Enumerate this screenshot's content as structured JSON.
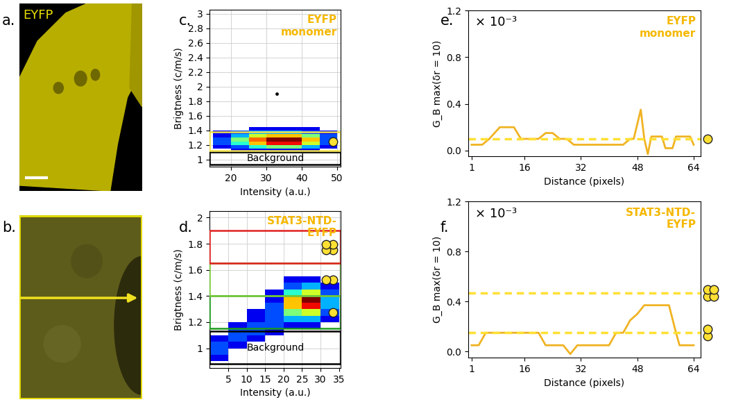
{
  "chart_data": [
    {
      "type": "image",
      "title": "a.",
      "subtitle": "EYFP"
    },
    {
      "type": "image",
      "title": "b."
    },
    {
      "type": "density",
      "title": "c.",
      "subtitle": "EYFP\nmonomer",
      "x_label": "Intensity (a.u.)",
      "y_label": "Brigtness (c/m/s)",
      "xlim": [
        14,
        51
      ],
      "xticks": [
        20,
        30,
        40,
        50
      ],
      "ylim": [
        0.9,
        3.05
      ],
      "yticks": [
        1,
        1.2,
        1.4,
        1.6,
        1.8,
        2,
        2.2,
        2.4,
        2.6,
        2.8,
        3
      ],
      "grid": true,
      "x_edges": [
        15,
        20,
        25,
        30,
        35,
        40,
        45,
        50
      ],
      "y_edges": [
        1.1,
        1.15,
        1.2,
        1.25,
        1.3,
        1.35,
        1.4,
        1.45
      ],
      "cells": [
        [
          0,
          1,
          1,
          1,
          1,
          1,
          0
        ],
        [
          1,
          2,
          4,
          5,
          5,
          3,
          1
        ],
        [
          2,
          4,
          7,
          9,
          9,
          6,
          2
        ],
        [
          2,
          5,
          8,
          10,
          10,
          7,
          2
        ],
        [
          1,
          3,
          6,
          7,
          7,
          5,
          2
        ],
        [
          1,
          2,
          3,
          3,
          3,
          2,
          1
        ],
        [
          0,
          0,
          1,
          1,
          1,
          1,
          0
        ]
      ],
      "points": {
        "x": [
          33
        ],
        "values": [
          1.9
        ],
        "color": "#000000"
      },
      "regions": [
        {
          "name": "Background",
          "ymin": 0.93,
          "ymax": 1.1,
          "color": "#000000"
        },
        {
          "ymin": 1.12,
          "ymax": 1.38,
          "color": "#f2e24a"
        }
      ]
    },
    {
      "type": "density",
      "title": "d.",
      "subtitle": "STAT3-NTD-\nEYFP",
      "x_label": "Intensity (a.u.)",
      "y_label": "Brigtness (c/m/s)",
      "xlim": [
        0,
        35.5
      ],
      "xticks": [
        5,
        10,
        15,
        20,
        25,
        30,
        35
      ],
      "ylim": [
        0.85,
        2.05
      ],
      "yticks": [
        1,
        1.2,
        1.4,
        1.6,
        1.8,
        2
      ],
      "grid": true,
      "x_edges": [
        0,
        5,
        10,
        15,
        20,
        25,
        30,
        35
      ],
      "y_edges": [
        0.9,
        0.95,
        1.0,
        1.05,
        1.1,
        1.15,
        1.2,
        1.25,
        1.3,
        1.35,
        1.4,
        1.45,
        1.5,
        1.55
      ],
      "cells": [
        [
          1,
          0,
          0,
          0,
          0,
          0,
          0
        ],
        [
          2,
          0,
          0,
          0,
          0,
          0,
          0
        ],
        [
          2,
          1,
          0,
          0,
          0,
          0,
          0
        ],
        [
          1,
          2,
          1,
          0,
          0,
          0,
          0
        ],
        [
          0,
          2,
          2,
          1,
          0,
          0,
          0
        ],
        [
          0,
          1,
          2,
          2,
          1,
          1,
          0
        ],
        [
          0,
          0,
          1,
          2,
          3,
          3,
          1
        ],
        [
          0,
          0,
          1,
          2,
          5,
          6,
          2
        ],
        [
          0,
          0,
          0,
          2,
          7,
          9,
          3
        ],
        [
          0,
          0,
          0,
          1,
          7,
          10,
          3
        ],
        [
          0,
          0,
          0,
          1,
          4,
          6,
          2
        ],
        [
          0,
          0,
          0,
          0,
          2,
          3,
          1
        ],
        [
          0,
          0,
          0,
          0,
          1,
          1,
          0
        ]
      ],
      "regions": [
        {
          "name": "Background",
          "ymin": 0.88,
          "ymax": 1.13,
          "color": "#000000"
        },
        {
          "ymin": 1.15,
          "ymax": 1.4,
          "color": "#1a9a1a"
        },
        {
          "ymin": 1.4,
          "ymax": 1.65,
          "color": "#7ccc3c"
        },
        {
          "ymin": 1.65,
          "ymax": 1.9,
          "color": "#e02020"
        }
      ]
    },
    {
      "type": "line",
      "title": "e.",
      "subtitle": "EYFP\nmonomer",
      "annotations": [
        "× 10⁻³"
      ],
      "x_label": "Distance (pixels)",
      "y_label": "G_B max(δr = 10)",
      "xlim": [
        0,
        66
      ],
      "xticks": [
        1,
        16,
        32,
        48,
        64
      ],
      "ylim": [
        -0.05,
        1.2
      ],
      "yticks": [
        {
          "value": 0,
          "label": "0.0"
        },
        0.4,
        0.8,
        1.2
      ],
      "grid": false,
      "color": "#f0b323",
      "x": [
        1,
        4,
        6,
        9,
        13,
        15,
        20,
        22,
        24,
        26,
        28,
        30,
        44,
        46,
        47,
        49,
        50,
        51,
        52,
        55,
        56,
        58,
        59,
        63,
        64
      ],
      "values": [
        0.05,
        0.05,
        0.1,
        0.2,
        0.2,
        0.1,
        0.1,
        0.15,
        0.15,
        0.1,
        0.1,
        0.05,
        0.05,
        0.1,
        0.1,
        0.35,
        0.1,
        -0.03,
        0.12,
        0.12,
        0.02,
        0.02,
        0.12,
        0.12,
        0.05
      ],
      "thresholds": [
        0.1
      ],
      "line_style": "solid"
    },
    {
      "type": "line",
      "title": "f.",
      "subtitle": "STAT3-NTD-\nEYFP",
      "annotations": [
        "× 10⁻³"
      ],
      "x_label": "Distance (pixels)",
      "y_label": "G_B max(δr = 10)",
      "xlim": [
        0,
        66
      ],
      "xticks": [
        1,
        16,
        32,
        48,
        64
      ],
      "ylim": [
        -0.05,
        1.2
      ],
      "yticks": [
        {
          "value": 0,
          "label": "0.0"
        },
        0.4,
        0.8,
        1.2
      ],
      "grid": false,
      "color": "#f0b323",
      "x": [
        1,
        3,
        5,
        20,
        22,
        27,
        29,
        31,
        40,
        42,
        44,
        46,
        48,
        50,
        57,
        59,
        60,
        64
      ],
      "values": [
        0.05,
        0.05,
        0.15,
        0.15,
        0.05,
        0.05,
        -0.02,
        0.05,
        0.05,
        0.15,
        0.15,
        0.25,
        0.3,
        0.37,
        0.37,
        0.15,
        0.05,
        0.05
      ],
      "thresholds": [
        0.15,
        0.47
      ],
      "line_style": "solid"
    }
  ]
}
